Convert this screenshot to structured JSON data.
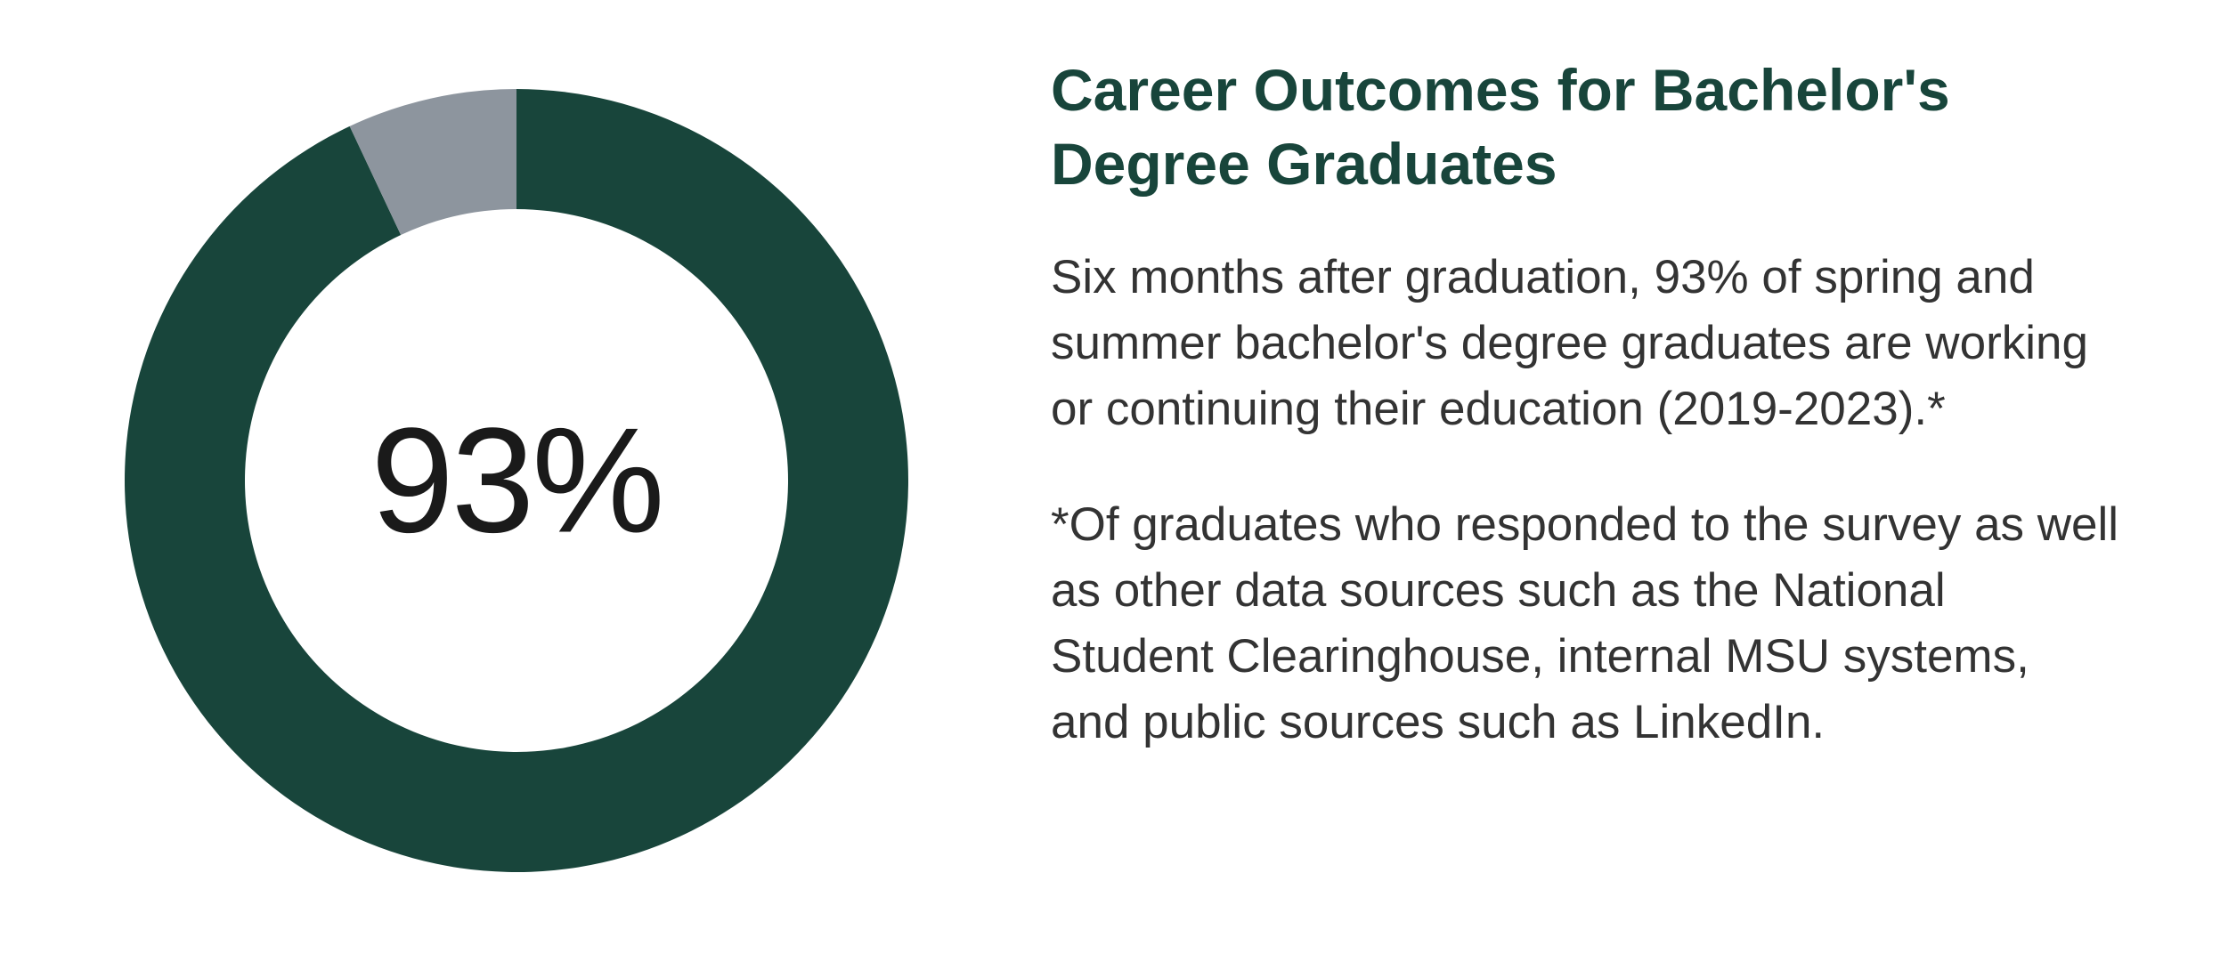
{
  "chart": {
    "type": "donut",
    "value_percent": 93,
    "center_label": "93%",
    "center_label_fontsize": 168,
    "center_label_color": "#1a1a1a",
    "primary_color": "#18453b",
    "secondary_color": "#8d959e",
    "outer_radius": 440,
    "inner_radius": 305,
    "stroke_width": 135,
    "background_color": "#ffffff",
    "start_angle_deg": 0
  },
  "text": {
    "title": "Career Outcomes for Bachelor's Degree Graduates",
    "title_color": "#18453b",
    "title_fontsize": 66,
    "description": "Six months after graduation, 93% of spring and summer bachelor's degree graduates are working or continuing their education (2019-2023).*",
    "footnote": "*Of graduates who responded to the survey as well as other data sources such as the National Student Clearinghouse, internal MSU systems, and public sources such as LinkedIn.",
    "body_fontsize": 53,
    "body_color": "#333333"
  }
}
